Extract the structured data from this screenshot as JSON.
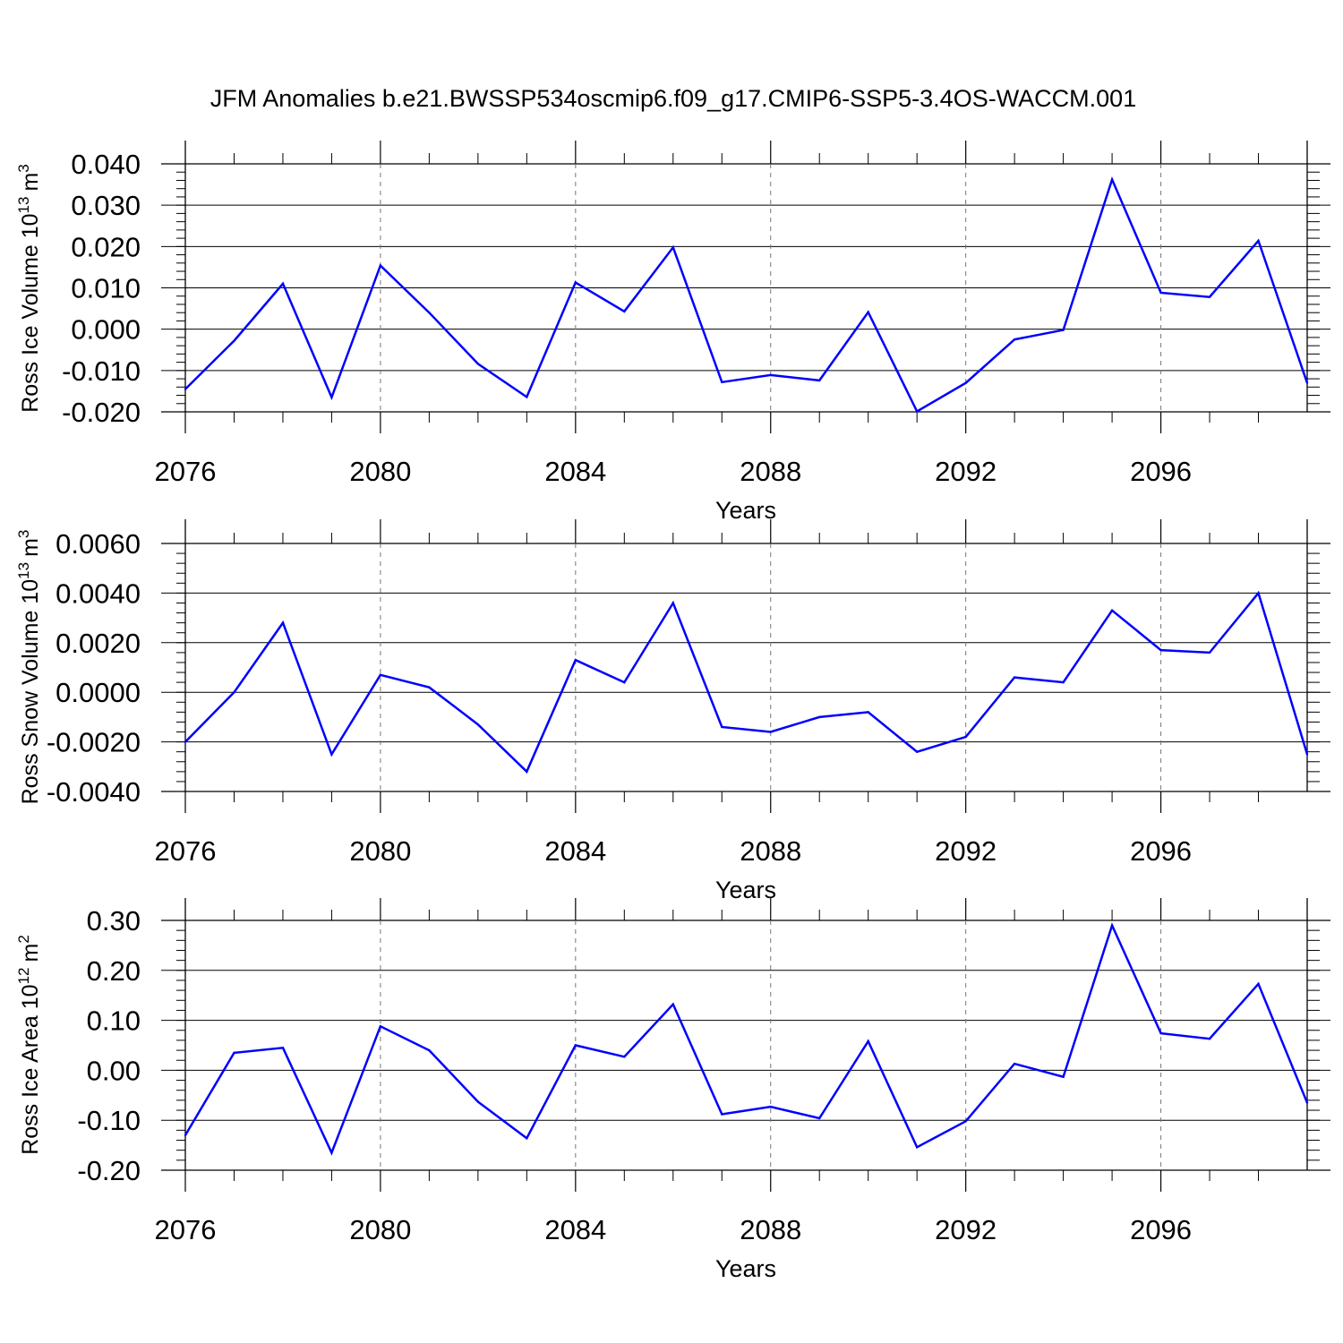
{
  "title": "JFM Anomalies b.e21.BWSSP534oscmip6.f09_g17.CMIP6-SSP5-3.4OS-WACCM.001",
  "colors": {
    "line": "#0000ff",
    "axis": "#000000",
    "grid": "#777777",
    "background": "#ffffff"
  },
  "chart_data": [
    {
      "type": "line",
      "ylabel_main": "Ross Ice Volume 10",
      "ylabel_sup": "13",
      "ylabel_unit": "m",
      "ylabel_unit_sup": "3",
      "xlabel": "Years",
      "x_ticks": [
        2076,
        2080,
        2084,
        2088,
        2092,
        2096
      ],
      "xlim": [
        2076,
        2099
      ],
      "ylim": [
        -0.02,
        0.04
      ],
      "y_ticks": [
        -0.02,
        -0.01,
        0.0,
        0.01,
        0.02,
        0.03,
        0.04
      ],
      "y_tick_labels": [
        "-0.020",
        "-0.010",
        "0.000",
        "0.010",
        "0.020",
        "0.030",
        "0.040"
      ],
      "x": [
        2076,
        2077,
        2078,
        2079,
        2080,
        2081,
        2082,
        2083,
        2084,
        2085,
        2086,
        2087,
        2088,
        2089,
        2090,
        2091,
        2092,
        2093,
        2094,
        2095,
        2096,
        2097,
        2098,
        2099
      ],
      "values": [
        -0.0145,
        -0.0028,
        0.011,
        -0.0165,
        0.0154,
        0.004,
        -0.0084,
        -0.0164,
        0.0113,
        0.0043,
        0.0198,
        -0.0128,
        -0.0111,
        -0.0124,
        0.0041,
        -0.0199,
        -0.013,
        -0.0025,
        -0.0002,
        0.0362,
        0.0088,
        0.0078,
        0.0214,
        -0.013
      ]
    },
    {
      "type": "line",
      "ylabel_main": "Ross Snow Volume 10",
      "ylabel_sup": "13",
      "ylabel_unit": "m",
      "ylabel_unit_sup": "3",
      "xlabel": "Years",
      "x_ticks": [
        2076,
        2080,
        2084,
        2088,
        2092,
        2096
      ],
      "xlim": [
        2076,
        2099
      ],
      "ylim": [
        -0.004,
        0.006
      ],
      "y_ticks": [
        -0.004,
        -0.002,
        0.0,
        0.002,
        0.004,
        0.006
      ],
      "y_tick_labels": [
        "-0.0040",
        "-0.0020",
        "0.0000",
        "0.0020",
        "0.0040",
        "0.0060"
      ],
      "x": [
        2076,
        2077,
        2078,
        2079,
        2080,
        2081,
        2082,
        2083,
        2084,
        2085,
        2086,
        2087,
        2088,
        2089,
        2090,
        2091,
        2092,
        2093,
        2094,
        2095,
        2096,
        2097,
        2098,
        2099
      ],
      "values": [
        -0.002,
        0.0,
        0.0028,
        -0.0025,
        0.0007,
        0.0002,
        -0.0013,
        -0.0032,
        0.0013,
        0.0004,
        0.0036,
        -0.0014,
        -0.0016,
        -0.001,
        -0.0008,
        -0.0024,
        -0.0018,
        0.0006,
        0.0004,
        0.0033,
        0.0017,
        0.0016,
        0.004,
        -0.0025
      ]
    },
    {
      "type": "line",
      "ylabel_main": "Ross Ice Area 10",
      "ylabel_sup": "12",
      "ylabel_unit": "m",
      "ylabel_unit_sup": "2",
      "xlabel": "Years",
      "x_ticks": [
        2076,
        2080,
        2084,
        2088,
        2092,
        2096
      ],
      "xlim": [
        2076,
        2099
      ],
      "ylim": [
        -0.2,
        0.3
      ],
      "y_ticks": [
        -0.2,
        -0.1,
        0.0,
        0.1,
        0.2,
        0.3
      ],
      "y_tick_labels": [
        "-0.20",
        "-0.10",
        "0.00",
        "0.10",
        "0.20",
        "0.30"
      ],
      "x": [
        2076,
        2077,
        2078,
        2079,
        2080,
        2081,
        2082,
        2083,
        2084,
        2085,
        2086,
        2087,
        2088,
        2089,
        2090,
        2091,
        2092,
        2093,
        2094,
        2095,
        2096,
        2097,
        2098,
        2099
      ],
      "values": [
        -0.13,
        0.035,
        0.045,
        -0.165,
        0.088,
        0.04,
        -0.063,
        -0.136,
        0.05,
        0.027,
        0.132,
        -0.088,
        -0.073,
        -0.096,
        0.058,
        -0.154,
        -0.102,
        0.013,
        -0.013,
        0.29,
        0.074,
        0.063,
        0.173,
        -0.065
      ]
    }
  ]
}
